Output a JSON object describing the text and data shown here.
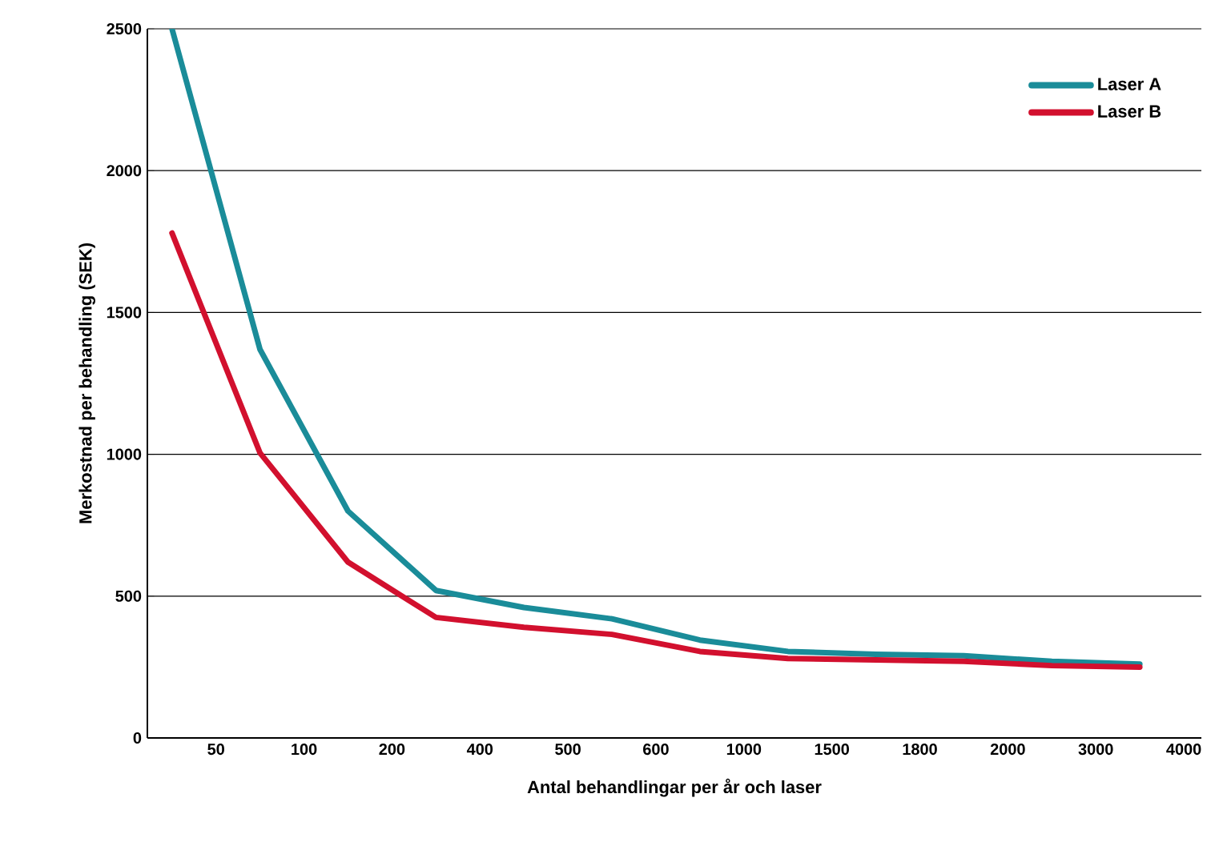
{
  "chart_data": {
    "type": "line",
    "xlabel": "Antal behandlingar per år och laser",
    "ylabel": "Merkostnad per behandling (SEK)",
    "categories": [
      null,
      "50",
      null,
      "100",
      null,
      "200",
      null,
      "400",
      null,
      "500",
      null,
      "600",
      null,
      "1000",
      null,
      "1500",
      null,
      "1800",
      null,
      "2000",
      null,
      "3000",
      null,
      "4000"
    ],
    "ylim": [
      0,
      2500
    ],
    "yticks": [
      0,
      500,
      1000,
      1500,
      2000,
      2500
    ],
    "grid": "y",
    "legend": "top right",
    "marker": "none",
    "line_style": "solid",
    "series": [
      {
        "name": "Laser A",
        "color": "#1a8c99",
        "values": [
          2500,
          null,
          1370,
          null,
          800,
          null,
          520,
          null,
          460,
          null,
          420,
          null,
          345,
          null,
          305,
          null,
          295,
          null,
          290,
          null,
          270,
          null,
          260,
          null
        ]
      },
      {
        "name": "Laser B",
        "color": "#d2102e",
        "values": [
          1780,
          null,
          1005,
          null,
          620,
          null,
          425,
          null,
          390,
          null,
          365,
          null,
          305,
          null,
          280,
          null,
          275,
          null,
          270,
          null,
          255,
          null,
          250,
          null
        ]
      }
    ]
  }
}
